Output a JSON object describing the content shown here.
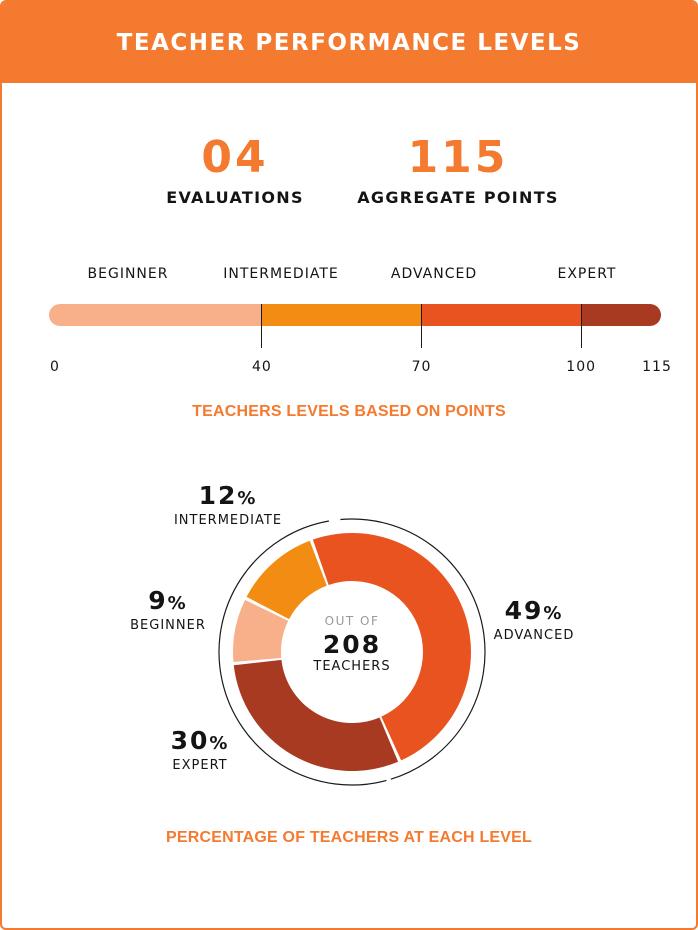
{
  "header": {
    "title": "TEACHER PERFORMANCE LEVELS"
  },
  "stats": {
    "evaluations": {
      "value": "04",
      "label": "EVALUATIONS"
    },
    "aggregate": {
      "value": "115",
      "label": "AGGREGATE POINTS"
    }
  },
  "chart_data": [
    {
      "type": "bar",
      "title": "TEACHERS LEVELS BASED ON POINTS",
      "levels": [
        {
          "name": "BEGINNER",
          "start": 0,
          "end": 40,
          "color": "#f8b08b"
        },
        {
          "name": "INTERMEDIATE",
          "start": 40,
          "end": 70,
          "color": "#f28c12"
        },
        {
          "name": "ADVANCED",
          "start": 70,
          "end": 100,
          "color": "#e8531f"
        },
        {
          "name": "EXPERT",
          "start": 100,
          "end": 115,
          "color": "#a83a22"
        }
      ],
      "ticks": [
        "0",
        "40",
        "70",
        "100",
        "115"
      ],
      "xlim": [
        0,
        115
      ]
    },
    {
      "type": "pie",
      "title": "PERCENTAGE OF TEACHERS AT EACH LEVEL",
      "center": {
        "top": "OUT OF",
        "value": "208",
        "bottom": "TEACHERS"
      },
      "slices": [
        {
          "name": "ADVANCED",
          "value": 49,
          "label": "49",
          "color": "#e8531f"
        },
        {
          "name": "EXPERT",
          "value": 30,
          "label": "30",
          "color": "#a83a22"
        },
        {
          "name": "BEGINNER",
          "value": 9,
          "label": "9",
          "color": "#f8b08b"
        },
        {
          "name": "INTERMEDIATE",
          "value": 12,
          "label": "12",
          "color": "#f28c12"
        }
      ],
      "percent_sign": "%"
    }
  ]
}
